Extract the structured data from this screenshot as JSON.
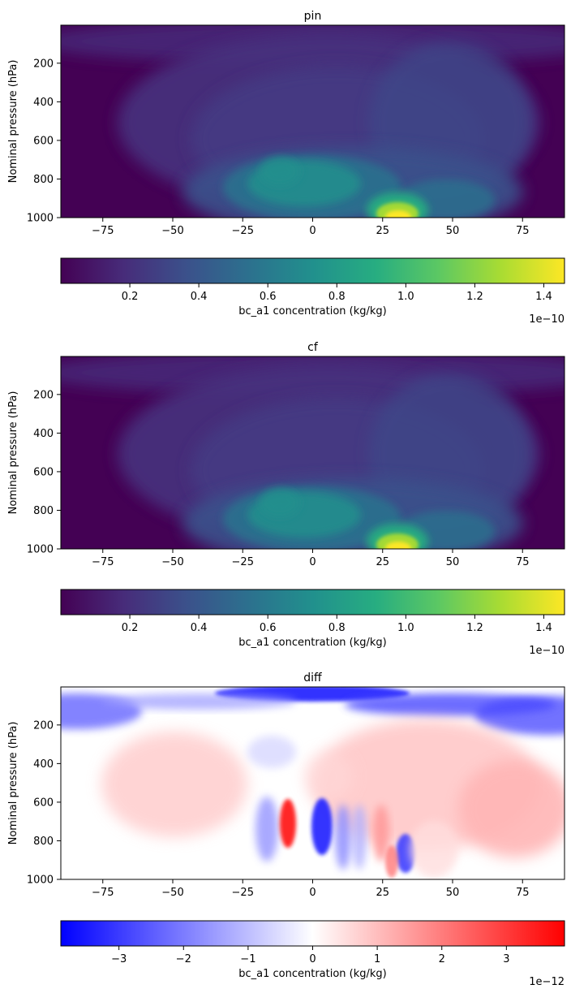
{
  "chart_data": [
    {
      "type": "heatmap",
      "title": "pin",
      "xlabel": "",
      "ylabel": "Nominal pressure (hPa)",
      "xlim": [
        -90,
        90
      ],
      "ylim": [
        1000,
        3
      ],
      "xticks": [
        -75,
        -50,
        -25,
        0,
        25,
        50,
        75
      ],
      "yticks": [
        200,
        400,
        600,
        800,
        1000
      ],
      "colormap": "viridis",
      "colorbar": {
        "label": "bc_a1 concentration (kg/kg)",
        "range": [
          0,
          1.46
        ],
        "ticks": [
          "0.2",
          "0.4",
          "0.6",
          "0.8",
          "1.0",
          "1.2",
          "1.4"
        ],
        "tick_values": [
          0.2,
          0.4,
          0.6,
          0.8,
          1.0,
          1.2,
          1.4
        ],
        "offset": "1e−10"
      },
      "features": [
        {
          "lat": 31,
          "pressure": 990,
          "value": 1.46
        },
        {
          "lat": 5,
          "pressure": 830,
          "value": 0.72
        },
        {
          "lat": -8,
          "pressure": 760,
          "value": 0.6
        },
        {
          "lat": 55,
          "pressure": 900,
          "value": 0.45
        },
        {
          "lat": 0,
          "pressure": 450,
          "value": 0.3
        }
      ]
    },
    {
      "type": "heatmap",
      "title": "cf",
      "xlabel": "",
      "ylabel": "Nominal pressure (hPa)",
      "xlim": [
        -90,
        90
      ],
      "ylim": [
        1000,
        3
      ],
      "xticks": [
        -75,
        -50,
        -25,
        0,
        25,
        50,
        75
      ],
      "yticks": [
        200,
        400,
        600,
        800,
        1000
      ],
      "colormap": "viridis",
      "colorbar": {
        "label": "bc_a1 concentration (kg/kg)",
        "range": [
          0,
          1.46
        ],
        "ticks": [
          "0.2",
          "0.4",
          "0.6",
          "0.8",
          "1.0",
          "1.2",
          "1.4"
        ],
        "tick_values": [
          0.2,
          0.4,
          0.6,
          0.8,
          1.0,
          1.2,
          1.4
        ],
        "offset": "1e−10"
      },
      "features": [
        {
          "lat": 31,
          "pressure": 990,
          "value": 1.46
        },
        {
          "lat": 5,
          "pressure": 830,
          "value": 0.72
        },
        {
          "lat": -8,
          "pressure": 760,
          "value": 0.6
        },
        {
          "lat": 55,
          "pressure": 900,
          "value": 0.45
        },
        {
          "lat": 0,
          "pressure": 450,
          "value": 0.3
        }
      ]
    },
    {
      "type": "heatmap",
      "title": "diff",
      "xlabel": "",
      "ylabel": "Nominal pressure (hPa)",
      "xlim": [
        -90,
        90
      ],
      "ylim": [
        1000,
        3
      ],
      "xticks": [
        -75,
        -50,
        -25,
        0,
        25,
        50,
        75
      ],
      "yticks": [
        200,
        400,
        600,
        800,
        1000
      ],
      "colormap": "bwr",
      "colorbar": {
        "label": "bc_a1 concentration (kg/kg)",
        "range": [
          -3.9,
          3.9
        ],
        "ticks": [
          "−3",
          "−2",
          "−1",
          "0",
          "1",
          "2",
          "3"
        ],
        "tick_values": [
          -3,
          -2,
          -1,
          0,
          1,
          2,
          3
        ],
        "offset": "1e−12"
      },
      "features": [
        {
          "lat": -8,
          "pressure": 770,
          "value": 3.9
        },
        {
          "lat": 3,
          "pressure": 780,
          "value": -3.2
        },
        {
          "lat": 35,
          "pressure": 880,
          "value": -2.5
        },
        {
          "lat": 0,
          "pressure": 50,
          "value": -3.0
        },
        {
          "lat": 60,
          "pressure": 550,
          "value": 1.0
        }
      ]
    }
  ]
}
